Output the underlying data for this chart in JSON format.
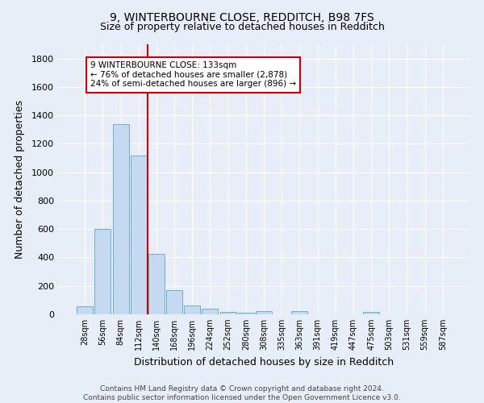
{
  "title_line1": "9, WINTERBOURNE CLOSE, REDDITCH, B98 7FS",
  "title_line2": "Size of property relative to detached houses in Redditch",
  "xlabel": "Distribution of detached houses by size in Redditch",
  "ylabel": "Number of detached properties",
  "footnote_line1": "Contains HM Land Registry data © Crown copyright and database right 2024.",
  "footnote_line2": "Contains public sector information licensed under the Open Government Licence v3.0.",
  "bar_labels": [
    "28sqm",
    "56sqm",
    "84sqm",
    "112sqm",
    "140sqm",
    "168sqm",
    "196sqm",
    "224sqm",
    "252sqm",
    "280sqm",
    "308sqm",
    "335sqm",
    "363sqm",
    "391sqm",
    "419sqm",
    "447sqm",
    "475sqm",
    "503sqm",
    "531sqm",
    "559sqm",
    "587sqm"
  ],
  "bar_values": [
    55,
    600,
    1340,
    1120,
    425,
    170,
    60,
    38,
    15,
    10,
    25,
    0,
    20,
    0,
    0,
    0,
    15,
    0,
    0,
    0,
    0
  ],
  "bar_color": "#c5d9f0",
  "bar_edge_color": "#6baed6",
  "bg_color": "#e8eef8",
  "grid_color": "#ffffff",
  "vline_color": "#cc0000",
  "vline_pos": 3.5,
  "annotation_text": "9 WINTERBOURNE CLOSE: 133sqm\n← 76% of detached houses are smaller (2,878)\n24% of semi-detached houses are larger (896) →",
  "annotation_box_facecolor": "#ffffff",
  "annotation_box_edgecolor": "#cc0000",
  "ylim": [
    0,
    1900
  ],
  "yticks": [
    0,
    200,
    400,
    600,
    800,
    1000,
    1200,
    1400,
    1600,
    1800
  ]
}
